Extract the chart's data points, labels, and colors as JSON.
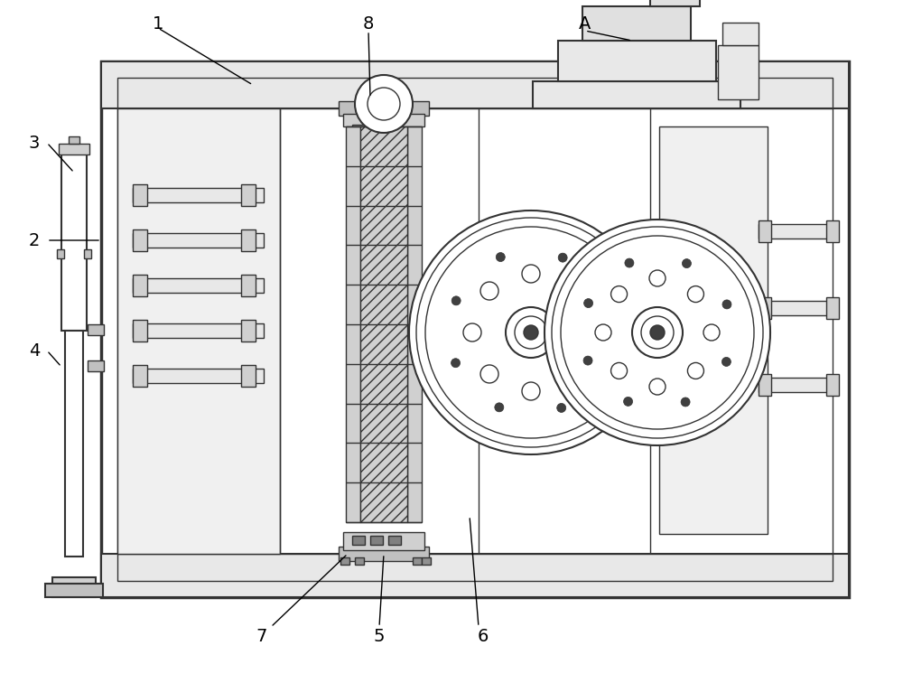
{
  "bg_color": "#ffffff",
  "line_color": "#333333",
  "label_color": "#000000",
  "fig_width": 10.0,
  "fig_height": 7.56,
  "dpi": 100
}
